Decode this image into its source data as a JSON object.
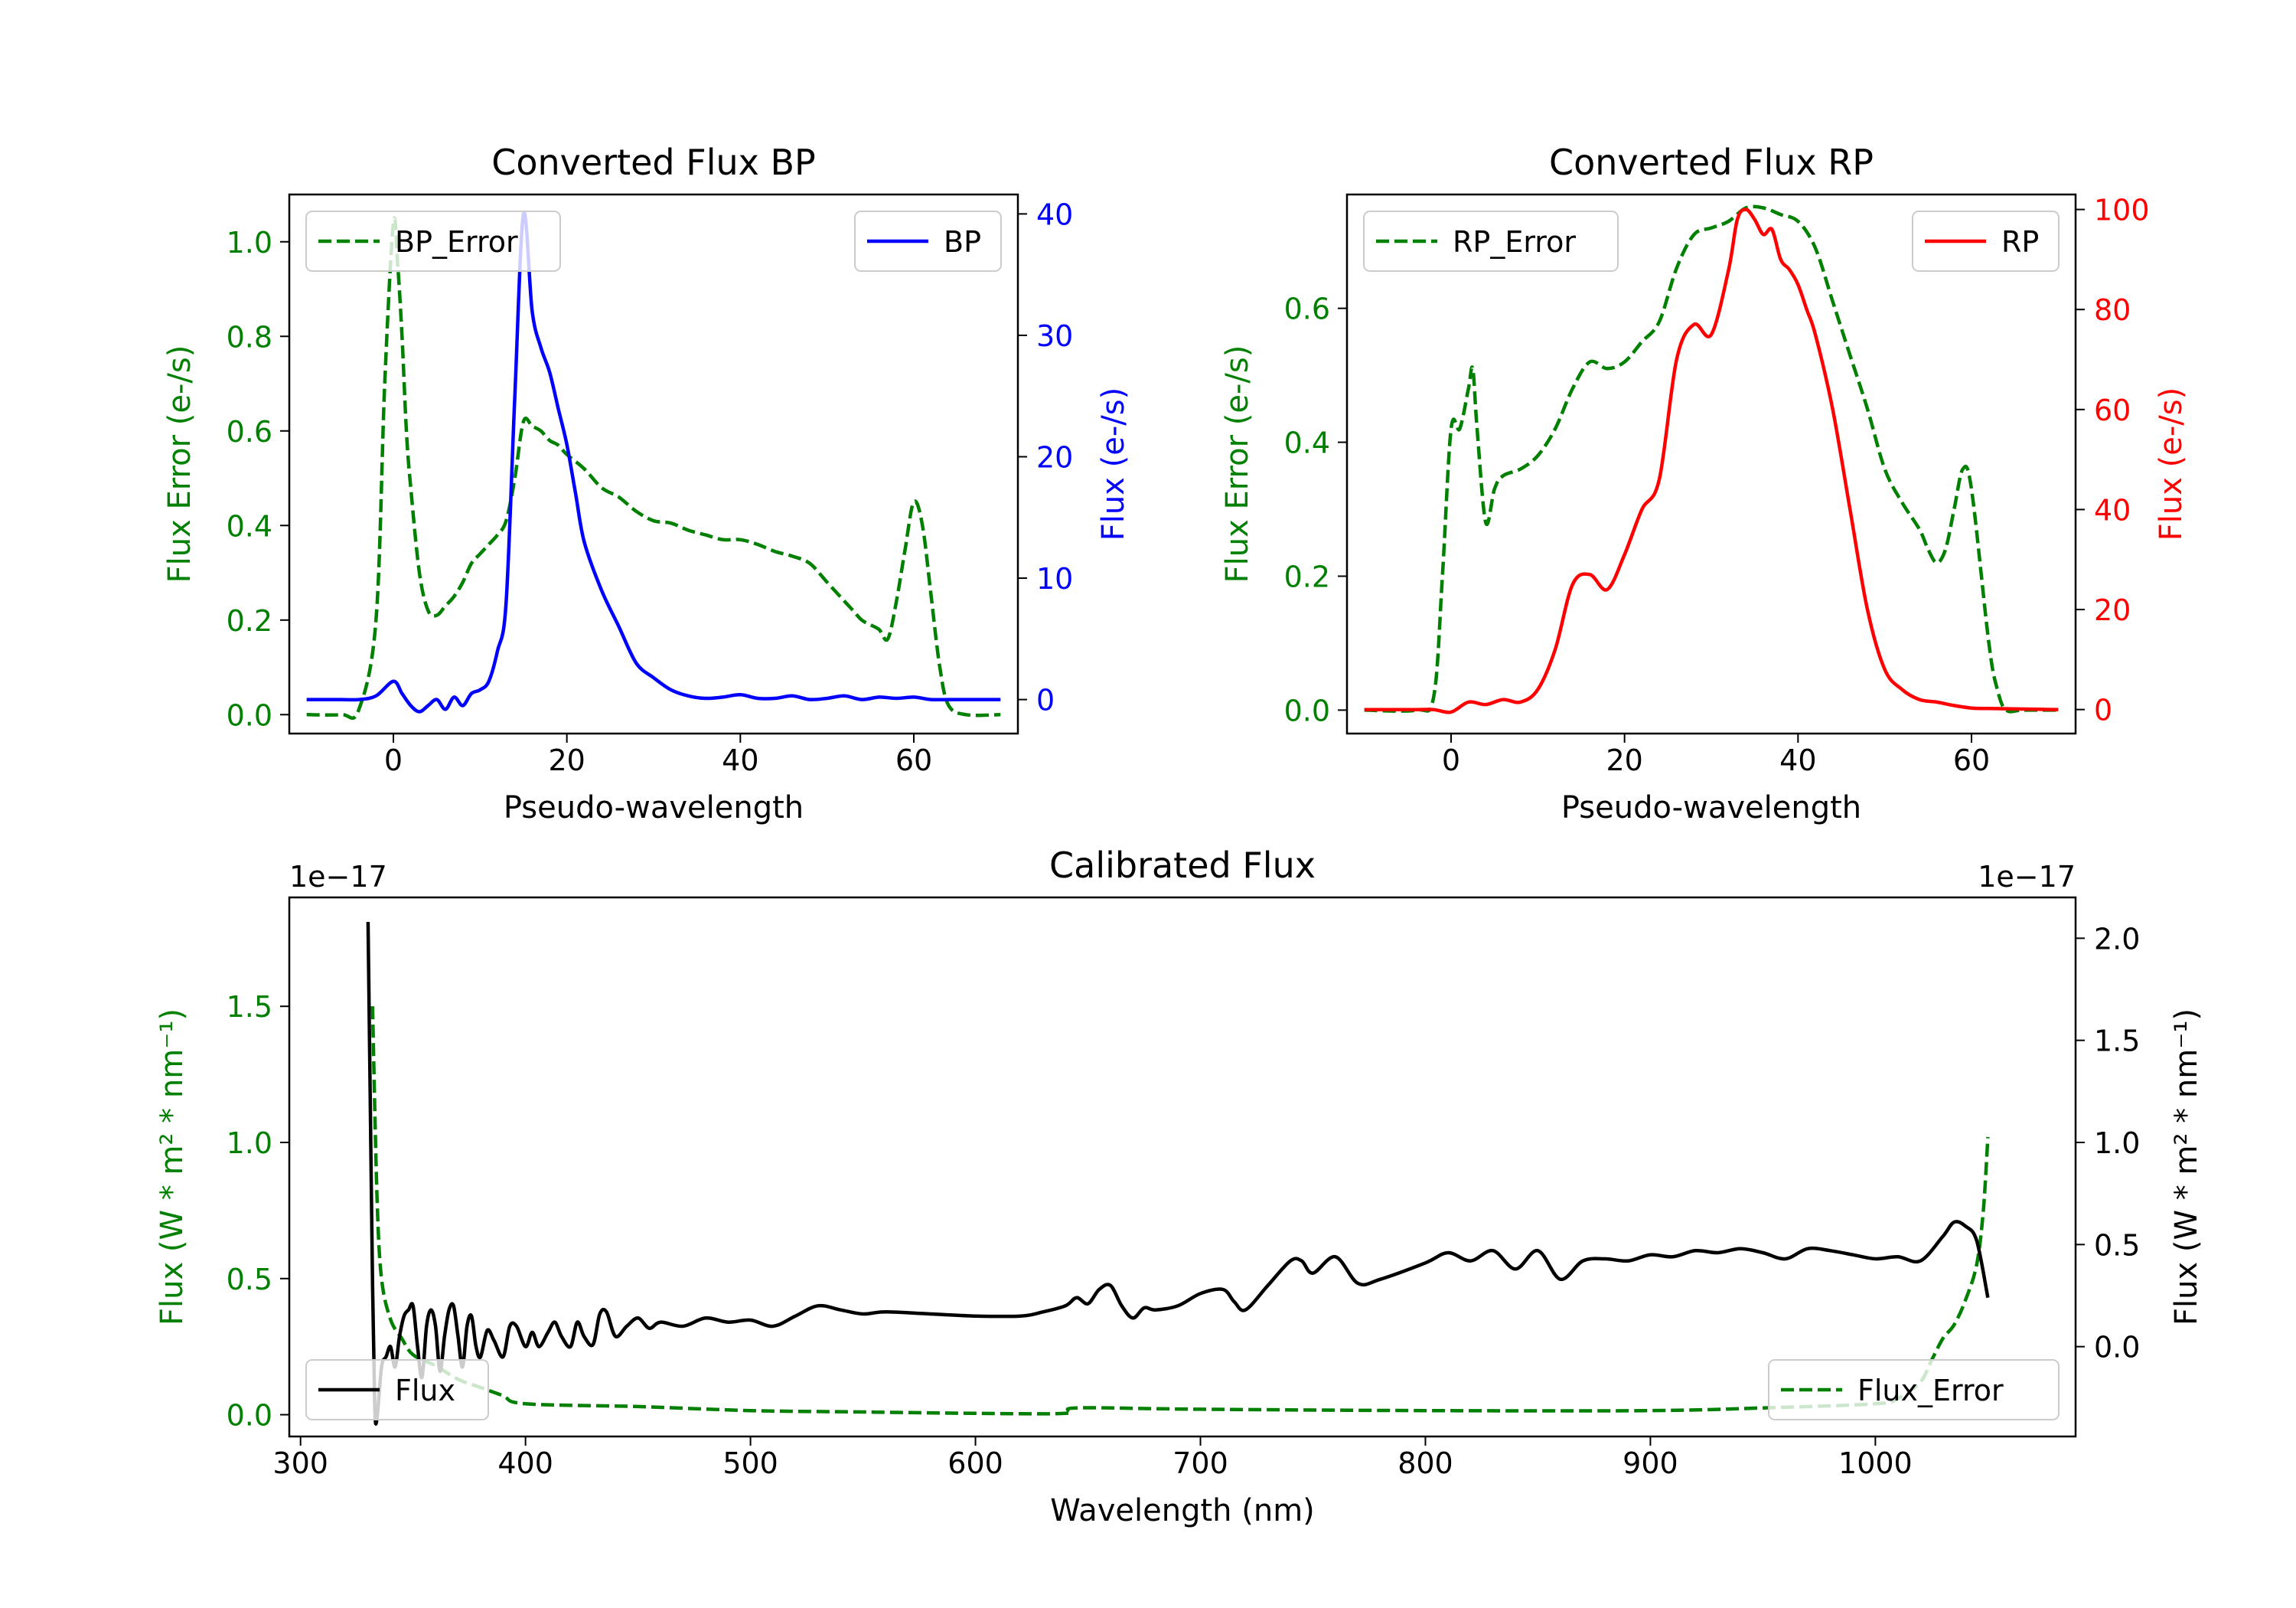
{
  "chart_data": [
    {
      "id": "bp",
      "type": "line",
      "title": "Converted Flux BP",
      "xlabel": "Pseudo-wavelength",
      "xlim": [
        -12,
        72
      ],
      "xticks": [
        0,
        20,
        40,
        60
      ],
      "left_axis": {
        "label": "Flux Error (e-/s)",
        "color": "#008000",
        "ylim": [
          -0.04,
          1.1
        ],
        "ticks": [
          0.0,
          0.2,
          0.4,
          0.6,
          0.8,
          1.0
        ],
        "tick_labels": [
          "0.0",
          "0.2",
          "0.4",
          "0.6",
          "0.8",
          "1.0"
        ]
      },
      "right_axis": {
        "label": "Flux (e-/s)",
        "color": "#0000ff",
        "ylim": [
          -2.8,
          41.6
        ],
        "ticks": [
          0,
          10,
          20,
          30,
          40
        ],
        "tick_labels": [
          "0",
          "10",
          "20",
          "30",
          "40"
        ]
      },
      "series": [
        {
          "name": "BP_Error",
          "axis": "left",
          "color": "#008000",
          "dash": true,
          "x": [
            -10,
            -6,
            -4,
            -2,
            -1,
            0,
            0.5,
            1,
            1.5,
            2,
            3,
            4,
            5,
            6,
            7,
            8,
            9,
            10,
            11,
            12,
            13,
            14,
            15,
            16,
            17,
            18,
            19,
            20,
            22,
            24,
            26,
            28,
            30,
            32,
            34,
            36,
            38,
            40,
            42,
            44,
            46,
            48,
            50,
            52,
            53,
            54,
            55,
            56,
            57,
            58,
            59,
            60,
            61,
            62,
            63,
            64,
            66,
            70
          ],
          "y": [
            0.0,
            0.0,
            0.01,
            0.2,
            0.7,
            1.04,
            0.95,
            0.8,
            0.6,
            0.48,
            0.3,
            0.22,
            0.21,
            0.23,
            0.25,
            0.28,
            0.32,
            0.34,
            0.36,
            0.38,
            0.41,
            0.5,
            0.62,
            0.61,
            0.6,
            0.58,
            0.57,
            0.55,
            0.52,
            0.48,
            0.46,
            0.43,
            0.41,
            0.405,
            0.39,
            0.38,
            0.37,
            0.37,
            0.36,
            0.345,
            0.335,
            0.32,
            0.28,
            0.24,
            0.22,
            0.2,
            0.19,
            0.18,
            0.16,
            0.24,
            0.35,
            0.45,
            0.4,
            0.25,
            0.1,
            0.02,
            0.0,
            0.0
          ]
        },
        {
          "name": "BP",
          "axis": "right",
          "color": "#0000ff",
          "dash": false,
          "x": [
            -10,
            -6,
            -4,
            -2,
            0,
            1,
            2,
            3,
            4,
            5,
            6,
            7,
            8,
            9,
            10,
            11,
            12,
            13,
            14,
            15,
            16,
            17,
            18,
            19,
            20,
            21,
            22,
            24,
            26,
            28,
            30,
            32,
            34,
            36,
            38,
            40,
            42,
            44,
            46,
            48,
            50,
            52,
            54,
            56,
            58,
            60,
            62,
            64,
            66,
            68,
            70
          ],
          "y": [
            0,
            0,
            0,
            0.3,
            1.5,
            0.5,
            -0.5,
            -1,
            -0.5,
            0,
            -0.8,
            0.2,
            -0.5,
            0.5,
            0.8,
            1.5,
            4,
            8,
            25,
            40,
            32,
            29,
            27,
            24,
            21,
            17,
            13,
            9,
            6,
            3,
            1.8,
            0.8,
            0.3,
            0.1,
            0.2,
            0.4,
            0.1,
            0.1,
            0.3,
            0,
            0.1,
            0.3,
            0,
            0.2,
            0.1,
            0.2,
            0,
            0,
            0,
            0,
            0
          ]
        }
      ],
      "legend": [
        {
          "label": "BP_Error",
          "position": "upper-left"
        },
        {
          "label": "BP",
          "position": "upper-right"
        }
      ]
    },
    {
      "id": "rp",
      "type": "line",
      "title": "Converted Flux RP",
      "xlabel": "Pseudo-wavelength",
      "xlim": [
        -12,
        72
      ],
      "xticks": [
        0,
        20,
        40,
        60
      ],
      "left_axis": {
        "label": "Flux Error (e-/s)",
        "color": "#008000",
        "ylim": [
          -0.035,
          0.77
        ],
        "ticks": [
          0.0,
          0.2,
          0.4,
          0.6
        ],
        "tick_labels": [
          "0.0",
          "0.2",
          "0.4",
          "0.6"
        ]
      },
      "right_axis": {
        "label": "Flux (e-/s)",
        "color": "#ff0000",
        "ylim": [
          -4.8,
          103
        ],
        "ticks": [
          0,
          20,
          40,
          60,
          80,
          100
        ],
        "tick_labels": [
          "0",
          "20",
          "40",
          "60",
          "80",
          "100"
        ]
      },
      "series": [
        {
          "name": "RP_Error",
          "axis": "left",
          "color": "#008000",
          "dash": true,
          "x": [
            -10,
            -4,
            -2,
            -1,
            0,
            1,
            2,
            2.5,
            3,
            4,
            5,
            6,
            8,
            10,
            12,
            14,
            16,
            18,
            20,
            22,
            24,
            26,
            28,
            30,
            32,
            34,
            36,
            38,
            40,
            42,
            44,
            46,
            48,
            50,
            52,
            54,
            55,
            56,
            57,
            58,
            59,
            60,
            62,
            63,
            64,
            66,
            70
          ],
          "y": [
            0,
            0,
            0.02,
            0.2,
            0.42,
            0.42,
            0.48,
            0.51,
            0.42,
            0.28,
            0.33,
            0.35,
            0.36,
            0.38,
            0.42,
            0.48,
            0.52,
            0.51,
            0.52,
            0.55,
            0.58,
            0.66,
            0.71,
            0.72,
            0.73,
            0.75,
            0.75,
            0.74,
            0.73,
            0.69,
            0.61,
            0.53,
            0.45,
            0.36,
            0.31,
            0.27,
            0.24,
            0.22,
            0.24,
            0.3,
            0.36,
            0.33,
            0.1,
            0.03,
            0,
            0,
            0
          ]
        },
        {
          "name": "RP",
          "axis": "right",
          "color": "#ff0000",
          "dash": false,
          "x": [
            -10,
            -4,
            -2,
            0,
            2,
            4,
            6,
            8,
            10,
            12,
            14,
            16,
            18,
            20,
            22,
            24,
            26,
            28,
            30,
            32,
            33,
            34,
            35,
            36,
            37,
            38,
            39,
            40,
            41,
            42,
            44,
            46,
            48,
            50,
            52,
            54,
            56,
            58,
            60,
            62,
            66,
            70
          ],
          "y": [
            0,
            0,
            0,
            -0.5,
            1.5,
            1,
            2,
            1.5,
            4,
            12,
            25,
            27,
            24,
            31,
            40,
            46,
            70,
            77,
            75,
            88,
            98,
            100,
            98,
            95,
            96,
            90,
            88,
            85,
            80,
            75,
            60,
            40,
            20,
            8,
            4,
            2,
            1.5,
            0.8,
            0.3,
            0.2,
            0.1,
            0
          ]
        }
      ],
      "legend": [
        {
          "label": "RP_Error",
          "position": "upper-left"
        },
        {
          "label": "RP",
          "position": "upper-right"
        }
      ]
    },
    {
      "id": "cal",
      "type": "line",
      "title": "Calibrated Flux",
      "xlabel": "Wavelength (nm)",
      "xlim": [
        295,
        1089
      ],
      "xticks": [
        300,
        400,
        500,
        600,
        700,
        800,
        900,
        1000
      ],
      "left_axis": {
        "label": "Flux (W * m² * nm⁻¹)",
        "color": "#008000",
        "offset_text": "1e−17",
        "ylim": [
          -0.08,
          1.9
        ],
        "ticks": [
          0.0,
          0.5,
          1.0,
          1.5
        ],
        "tick_labels": [
          "0.0",
          "0.5",
          "1.0",
          "1.5"
        ]
      },
      "right_axis": {
        "label": "Flux (W * m² * nm⁻¹)",
        "color": "#000000",
        "offset_text": "1e−17",
        "ylim": [
          -0.44,
          2.2
        ],
        "ticks": [
          0.0,
          0.5,
          1.0,
          1.5,
          2.0
        ],
        "tick_labels": [
          "0.0",
          "0.5",
          "1.0",
          "1.5",
          "2.0"
        ]
      },
      "series": [
        {
          "name": "Flux_Error",
          "axis": "left",
          "color": "#008000",
          "dash": true,
          "x": [
            332,
            334,
            336,
            340,
            345,
            350,
            360,
            370,
            380,
            390,
            400,
            450,
            500,
            550,
            600,
            640,
            645,
            700,
            800,
            900,
            950,
            1000,
            1010,
            1020,
            1025,
            1030,
            1035,
            1040,
            1045,
            1048,
            1050
          ],
          "y": [
            1.5,
            0.8,
            0.5,
            0.35,
            0.28,
            0.22,
            0.18,
            0.13,
            0.1,
            0.07,
            0.04,
            0.03,
            0.015,
            0.01,
            0.005,
            0.005,
            0.025,
            0.02,
            0.015,
            0.015,
            0.025,
            0.04,
            0.06,
            0.12,
            0.2,
            0.28,
            0.33,
            0.42,
            0.55,
            0.75,
            1.02
          ]
        },
        {
          "name": "Flux",
          "axis": "right",
          "color": "#000000",
          "dash": false,
          "x": [
            330,
            331,
            332,
            333,
            334,
            336,
            338,
            340,
            342,
            344,
            346,
            348,
            350,
            352,
            354,
            356,
            358,
            360,
            362,
            364,
            366,
            368,
            370,
            372,
            374,
            376,
            378,
            380,
            383,
            386,
            390,
            393,
            396,
            400,
            403,
            406,
            410,
            413,
            416,
            420,
            423,
            426,
            430,
            433,
            436,
            440,
            445,
            450,
            455,
            460,
            470,
            480,
            490,
            500,
            510,
            520,
            530,
            540,
            550,
            560,
            580,
            600,
            620,
            630,
            640,
            645,
            650,
            655,
            660,
            665,
            670,
            675,
            680,
            690,
            700,
            710,
            715,
            720,
            730,
            740,
            745,
            750,
            760,
            770,
            780,
            800,
            810,
            820,
            830,
            840,
            850,
            860,
            870,
            880,
            890,
            900,
            910,
            920,
            930,
            940,
            950,
            960,
            970,
            980,
            990,
            1000,
            1010,
            1020,
            1030,
            1035,
            1040,
            1045,
            1050
          ],
          "y": [
            2.08,
            1.2,
            0.3,
            -0.3,
            -0.35,
            -0.1,
            -0.05,
            0.0,
            -0.1,
            0.05,
            0.15,
            0.18,
            0.2,
            0.0,
            -0.15,
            0.1,
            0.18,
            0.1,
            -0.12,
            0.05,
            0.18,
            0.2,
            0.05,
            -0.1,
            0.1,
            0.15,
            0.0,
            -0.05,
            0.08,
            0.03,
            -0.05,
            0.1,
            0.1,
            0.0,
            0.07,
            0.0,
            0.07,
            0.12,
            0.05,
            0.0,
            0.12,
            0.05,
            0.01,
            0.16,
            0.17,
            0.05,
            0.1,
            0.14,
            0.09,
            0.12,
            0.1,
            0.14,
            0.12,
            0.13,
            0.1,
            0.15,
            0.2,
            0.18,
            0.16,
            0.17,
            0.16,
            0.15,
            0.15,
            0.17,
            0.2,
            0.24,
            0.21,
            0.28,
            0.3,
            0.2,
            0.14,
            0.19,
            0.18,
            0.2,
            0.26,
            0.28,
            0.22,
            0.18,
            0.3,
            0.42,
            0.42,
            0.36,
            0.44,
            0.31,
            0.33,
            0.41,
            0.46,
            0.42,
            0.47,
            0.38,
            0.47,
            0.33,
            0.42,
            0.43,
            0.42,
            0.45,
            0.44,
            0.47,
            0.46,
            0.48,
            0.46,
            0.43,
            0.48,
            0.47,
            0.45,
            0.43,
            0.44,
            0.42,
            0.54,
            0.61,
            0.59,
            0.52,
            0.24
          ]
        }
      ],
      "legend": [
        {
          "label": "Flux",
          "position": "lower-left"
        },
        {
          "label": "Flux_Error",
          "position": "lower-right"
        }
      ]
    }
  ]
}
